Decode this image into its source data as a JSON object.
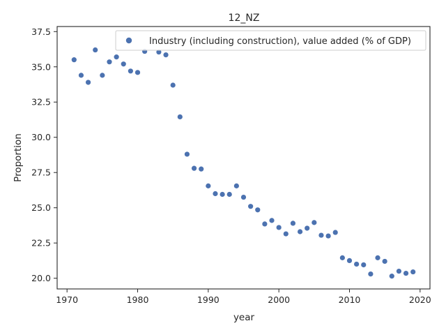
{
  "chart_data": {
    "type": "scatter",
    "title": "12_NZ",
    "xlabel": "year",
    "ylabel": "Proportion",
    "xlim": [
      1968.6,
      2021.4
    ],
    "ylim": [
      19.24,
      37.86
    ],
    "x_ticks": [
      "1970",
      "1980",
      "1990",
      "2000",
      "2010",
      "2020"
    ],
    "y_ticks": [
      "20.0",
      "22.5",
      "25.0",
      "27.5",
      "30.0",
      "32.5",
      "35.0",
      "37.5"
    ],
    "grid": false,
    "legend_position": "top-right",
    "series": [
      {
        "name": "Industry (including construction), value added (% of GDP)",
        "color": "#4c72b0",
        "points": [
          [
            1971,
            35.5
          ],
          [
            1972,
            34.4
          ],
          [
            1973,
            33.9
          ],
          [
            1974,
            36.2
          ],
          [
            1975,
            34.4
          ],
          [
            1976,
            35.35
          ],
          [
            1977,
            35.7
          ],
          [
            1978,
            35.2
          ],
          [
            1979,
            34.7
          ],
          [
            1980,
            34.6
          ],
          [
            1981,
            36.1
          ],
          [
            1983,
            36.05
          ],
          [
            1984,
            35.85
          ],
          [
            1985,
            33.7
          ],
          [
            1986,
            31.45
          ],
          [
            1987,
            28.8
          ],
          [
            1988,
            27.8
          ],
          [
            1989,
            27.75
          ],
          [
            1990,
            26.55
          ],
          [
            1991,
            26.0
          ],
          [
            1992,
            25.95
          ],
          [
            1993,
            25.95
          ],
          [
            1994,
            26.55
          ],
          [
            1995,
            25.75
          ],
          [
            1996,
            25.1
          ],
          [
            1997,
            24.85
          ],
          [
            1998,
            23.85
          ],
          [
            1999,
            24.1
          ],
          [
            2000,
            23.6
          ],
          [
            2001,
            23.15
          ],
          [
            2002,
            23.9
          ],
          [
            2003,
            23.3
          ],
          [
            2004,
            23.55
          ],
          [
            2005,
            23.95
          ],
          [
            2006,
            23.05
          ],
          [
            2007,
            23.0
          ],
          [
            2008,
            23.25
          ],
          [
            2009,
            21.45
          ],
          [
            2010,
            21.25
          ],
          [
            2011,
            21.0
          ],
          [
            2012,
            20.95
          ],
          [
            2013,
            20.3
          ],
          [
            2014,
            21.45
          ],
          [
            2015,
            21.2
          ],
          [
            2016,
            20.15
          ],
          [
            2017,
            20.5
          ],
          [
            2018,
            20.35
          ],
          [
            2019,
            20.45
          ]
        ]
      }
    ]
  }
}
